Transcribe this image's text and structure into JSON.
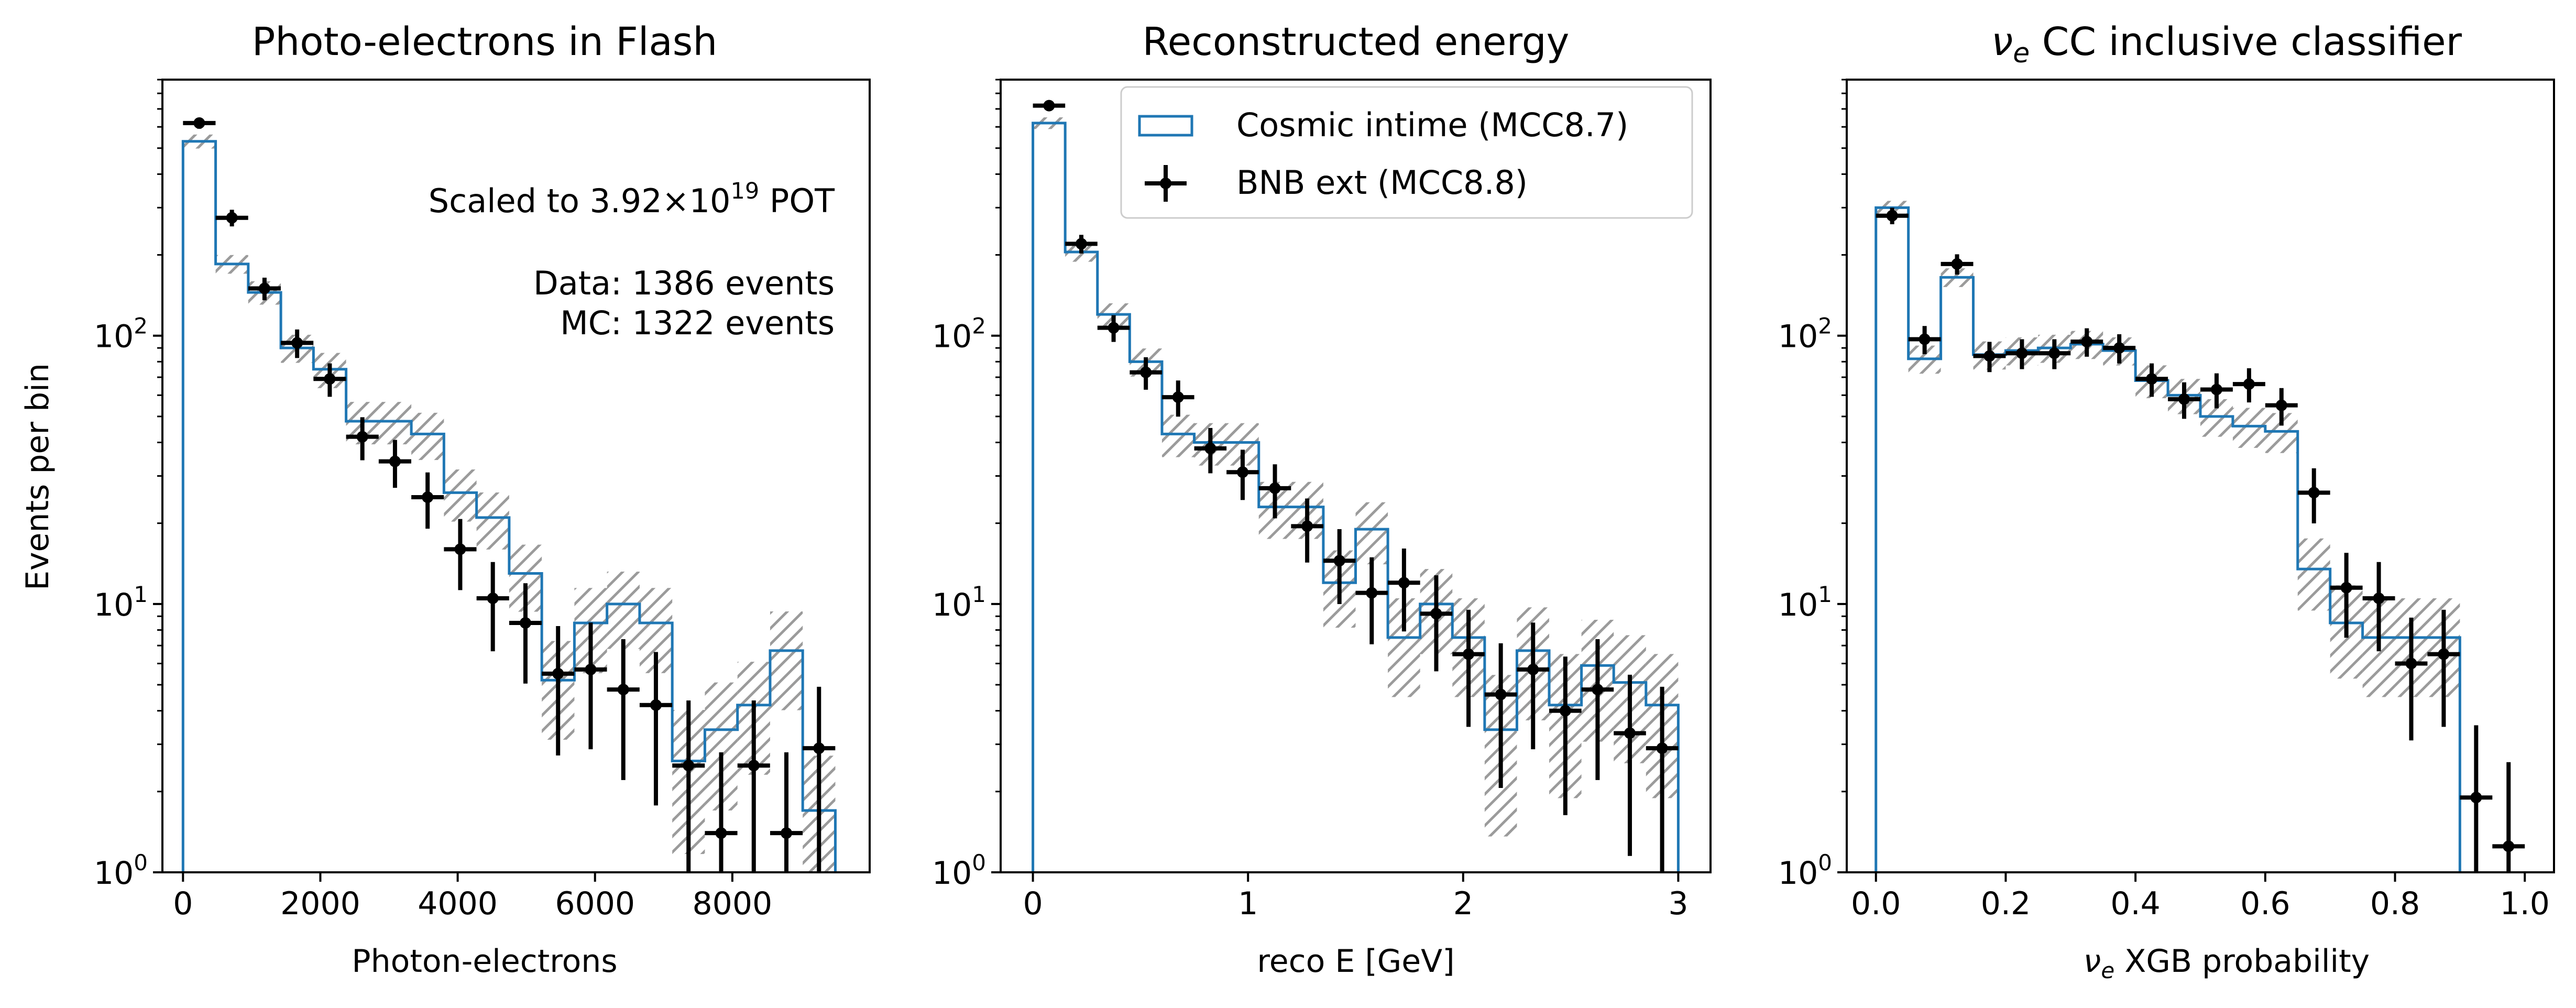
{
  "chart_data": [
    {
      "type": "histogram",
      "title": "Photo-electrons in Flash",
      "xlabel": "Photon-electrons",
      "ylabel": "Events per bin",
      "ylim": [
        1,
        900
      ],
      "yscale": "log",
      "xlim": [
        -300,
        10000
      ],
      "xticks": [
        0,
        2000,
        4000,
        6000,
        8000
      ],
      "xtick_labels": [
        "0",
        "2000",
        "4000",
        "6000",
        "8000"
      ],
      "annotation": {
        "pot_prefix": "Scaled to 3.92×10",
        "pot_exp": "19",
        "pot_suffix": " POT",
        "data_count": "Data: 1386 events",
        "mc_count": "MC: 1322 events"
      },
      "mc_series": {
        "name": "Cosmic intime (MCC8.7)",
        "color": "#1f77b4",
        "bin_edges": [
          0,
          475,
          950,
          1425,
          1900,
          2375,
          2850,
          3325,
          3800,
          4275,
          4750,
          5225,
          5700,
          6175,
          6650,
          7125,
          7600,
          8075,
          8550,
          9025,
          9500
        ],
        "values": [
          530,
          185,
          145,
          90,
          75,
          48,
          48,
          43,
          26,
          21,
          13,
          5.2,
          8.5,
          10,
          8.5,
          2.6,
          3.4,
          4.2,
          6.7,
          1.7
        ],
        "uncertainty": [
          0.06,
          0.08,
          0.1,
          0.12,
          0.15,
          0.18,
          0.18,
          0.2,
          0.22,
          0.24,
          0.28,
          0.4,
          0.35,
          0.32,
          0.35,
          0.55,
          0.5,
          0.45,
          0.4,
          0.6
        ]
      },
      "data_series": {
        "name": "BNB ext (MCC8.8)",
        "color": "#000000",
        "x": [
          237,
          712,
          1187,
          1662,
          2137,
          2612,
          3087,
          3562,
          4037,
          4512,
          4987,
          5462,
          5937,
          6412,
          6887,
          7362,
          7837,
          8312,
          8787,
          9262
        ],
        "y": [
          620,
          275,
          150,
          94,
          69,
          42,
          34,
          25,
          16,
          10.5,
          8.5,
          5.5,
          5.7,
          4.8,
          4.2,
          2.5,
          1.4,
          2.5,
          1.4,
          2.9
        ],
        "xerr": 237
      }
    },
    {
      "type": "histogram",
      "title": "Reconstructed energy",
      "xlabel": "reco E [GeV]",
      "ylabel": "",
      "ylim": [
        1,
        900
      ],
      "yscale": "log",
      "xlim": [
        -0.15,
        3.15
      ],
      "xticks": [
        0,
        1,
        2,
        3
      ],
      "xtick_labels": [
        "0",
        "1",
        "2",
        "3"
      ],
      "legend": {
        "position": "top-right",
        "entries": [
          "Cosmic intime (MCC8.7)",
          "BNB ext (MCC8.8)"
        ]
      },
      "mc_series": {
        "name": "Cosmic intime (MCC8.7)",
        "color": "#1f77b4",
        "bin_edges": [
          0,
          0.15,
          0.3,
          0.45,
          0.6,
          0.75,
          0.9,
          1.05,
          1.2,
          1.35,
          1.5,
          1.65,
          1.8,
          1.95,
          2.1,
          2.25,
          2.4,
          2.55,
          2.7,
          2.85,
          3.0
        ],
        "values": [
          620,
          205,
          120,
          80,
          43,
          40,
          40,
          23,
          23,
          12,
          19,
          7.5,
          10,
          7.5,
          3.4,
          6.7,
          4.2,
          5.9,
          5.1,
          4.2
        ],
        "uncertainty": [
          0.05,
          0.08,
          0.1,
          0.12,
          0.18,
          0.18,
          0.18,
          0.24,
          0.24,
          0.32,
          0.26,
          0.4,
          0.35,
          0.4,
          0.6,
          0.45,
          0.55,
          0.48,
          0.5,
          0.55
        ]
      },
      "data_series": {
        "name": "BNB ext (MCC8.8)",
        "color": "#000000",
        "x": [
          0.075,
          0.225,
          0.375,
          0.525,
          0.675,
          0.825,
          0.975,
          1.125,
          1.275,
          1.425,
          1.575,
          1.725,
          1.875,
          2.025,
          2.175,
          2.325,
          2.475,
          2.625,
          2.775,
          2.925
        ],
        "y": [
          720,
          220,
          107,
          73,
          59,
          38,
          31,
          27,
          19.5,
          14.5,
          11,
          12,
          9.2,
          6.5,
          4.6,
          5.7,
          4.0,
          4.8,
          3.3,
          2.9
        ],
        "xerr": 0.075
      }
    },
    {
      "type": "histogram",
      "title_symbol": "ν",
      "title_sub": "e",
      "title_rest": " CC inclusive classifier",
      "xlabel_symbol": "ν",
      "xlabel_sub": "e",
      "xlabel_rest": " XGB probability",
      "ylabel": "",
      "ylim": [
        1,
        900
      ],
      "yscale": "log",
      "xlim": [
        -0.045,
        1.045
      ],
      "xticks": [
        0,
        0.2,
        0.4,
        0.6,
        0.8,
        1.0
      ],
      "xtick_labels": [
        "0.0",
        "0.2",
        "0.4",
        "0.6",
        "0.8",
        "1.0"
      ],
      "mc_series": {
        "name": "Cosmic intime (MCC8.7)",
        "color": "#1f77b4",
        "bin_edges": [
          0,
          0.05,
          0.1,
          0.15,
          0.2,
          0.25,
          0.3,
          0.35,
          0.4,
          0.45,
          0.5,
          0.55,
          0.6,
          0.65,
          0.7,
          0.75,
          0.8,
          0.85,
          0.9
        ],
        "values": [
          300,
          82,
          165,
          85,
          88,
          90,
          93,
          88,
          68,
          60,
          50,
          46,
          44,
          13.5,
          8.5,
          7.5,
          7.5,
          7.5
        ],
        "uncertainty": [
          0.06,
          0.12,
          0.08,
          0.12,
          0.12,
          0.12,
          0.12,
          0.12,
          0.14,
          0.15,
          0.16,
          0.17,
          0.17,
          0.3,
          0.38,
          0.4,
          0.4,
          0.4
        ]
      },
      "data_series": {
        "name": "BNB ext (MCC8.8)",
        "color": "#000000",
        "x": [
          0.025,
          0.075,
          0.125,
          0.175,
          0.225,
          0.275,
          0.325,
          0.375,
          0.425,
          0.475,
          0.525,
          0.575,
          0.625,
          0.675,
          0.725,
          0.775,
          0.825,
          0.875,
          0.925,
          0.975
        ],
        "y": [
          280,
          97,
          185,
          84,
          86,
          86,
          95,
          90,
          69,
          58,
          63,
          66,
          55,
          26,
          11.5,
          10.5,
          6.0,
          6.5,
          1.9,
          1.25
        ],
        "xerr": 0.025
      }
    }
  ]
}
